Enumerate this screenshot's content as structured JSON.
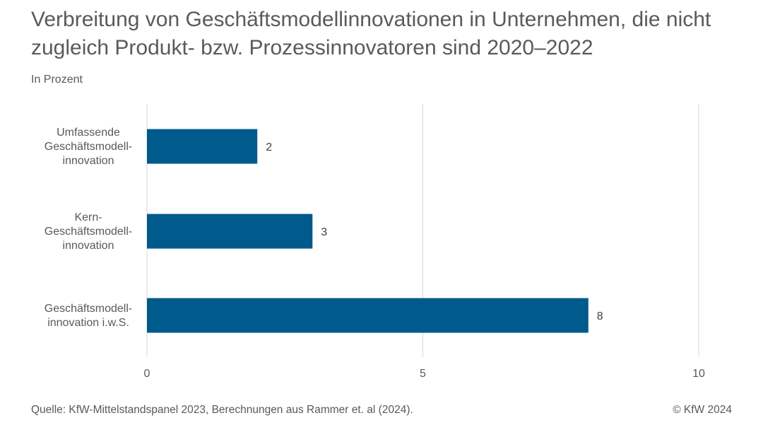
{
  "header": {
    "title": "Verbreitung von Geschäftsmodellinnovationen in Unternehmen, die nicht zugleich Produkt- bzw. Prozessinnovatoren sind 2020–2022",
    "subtitle": "In Prozent"
  },
  "footer": {
    "source": "Quelle: KfW-Mittelstandspanel 2023, Berechnungen aus Rammer et. al (2024).",
    "copyright": "© KfW 2024"
  },
  "colors": {
    "bar": "#005a8c",
    "grid": "#d9d9d9",
    "text": "#595959"
  },
  "chart_data": {
    "type": "bar",
    "orientation": "horizontal",
    "title": "Verbreitung von Geschäftsmodellinnovationen in Unternehmen, die nicht zugleich Produkt- bzw. Prozessinnovatoren sind 2020–2022",
    "subtitle": "In Prozent",
    "categories": [
      [
        "Umfassende",
        "Geschäftsmodell-",
        "innovation"
      ],
      [
        "Kern-",
        "Geschäftsmodell-",
        "innovation"
      ],
      [
        "Geschäftsmodell-",
        "innovation i.w.S."
      ]
    ],
    "values": [
      2,
      3,
      8
    ],
    "data_labels": [
      "2",
      "3",
      "8"
    ],
    "xlim": [
      0,
      10
    ],
    "xticks": [
      0,
      5,
      10
    ],
    "xtick_labels": [
      "0",
      "5",
      "10"
    ],
    "xlabel": "",
    "ylabel": "",
    "grid": true,
    "legend": false
  }
}
